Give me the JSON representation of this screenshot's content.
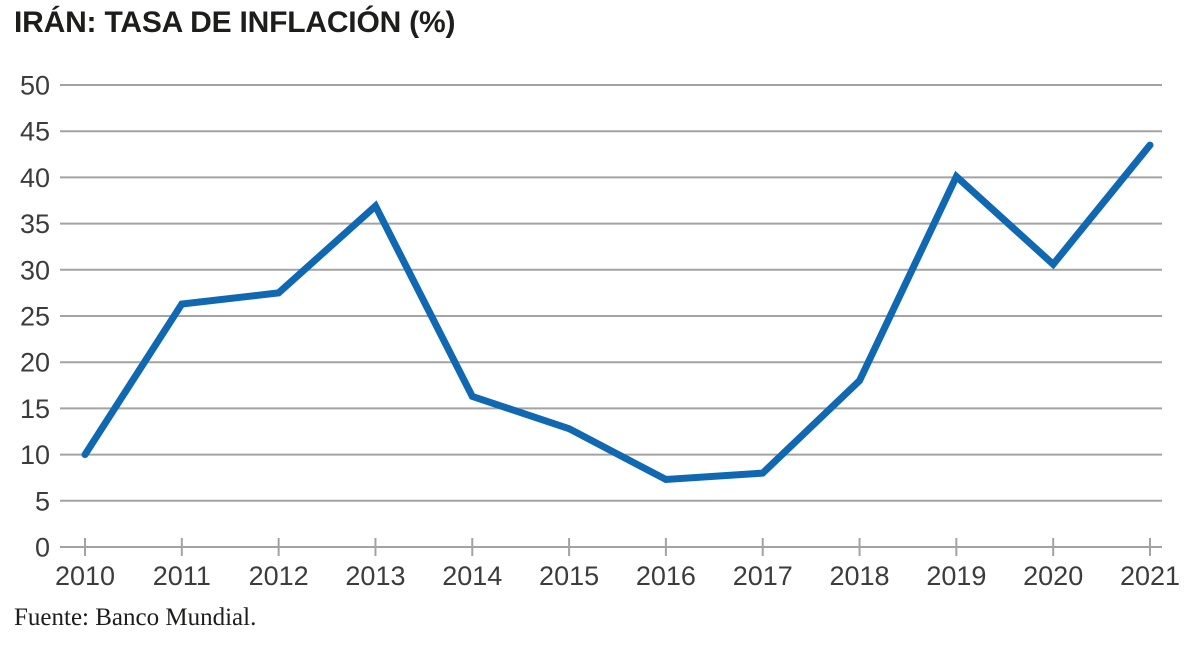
{
  "chart_data": {
    "type": "line",
    "title": "IRÁN: TASA DE INFLACIÓN (%)",
    "source": "Fuente: Banco Mundial.",
    "categories": [
      "2010",
      "2011",
      "2012",
      "2013",
      "2014",
      "2015",
      "2016",
      "2017",
      "2018",
      "2019",
      "2020",
      "2021"
    ],
    "series": [
      {
        "name": "Tasa de inflación (%)",
        "values": [
          10.0,
          26.3,
          27.5,
          36.9,
          16.3,
          12.8,
          7.3,
          8.0,
          18.0,
          40.1,
          30.6,
          43.5
        ]
      }
    ],
    "xlabel": "",
    "ylabel": "",
    "ylim": [
      0,
      50
    ],
    "ytick_step": 5,
    "grid": "horizontal",
    "legend": "none",
    "colors": {
      "line": "#0f68b1",
      "grid": "#a3a3a3",
      "tick_label": "#3c3c3b",
      "title": "#1d1d1b"
    }
  }
}
